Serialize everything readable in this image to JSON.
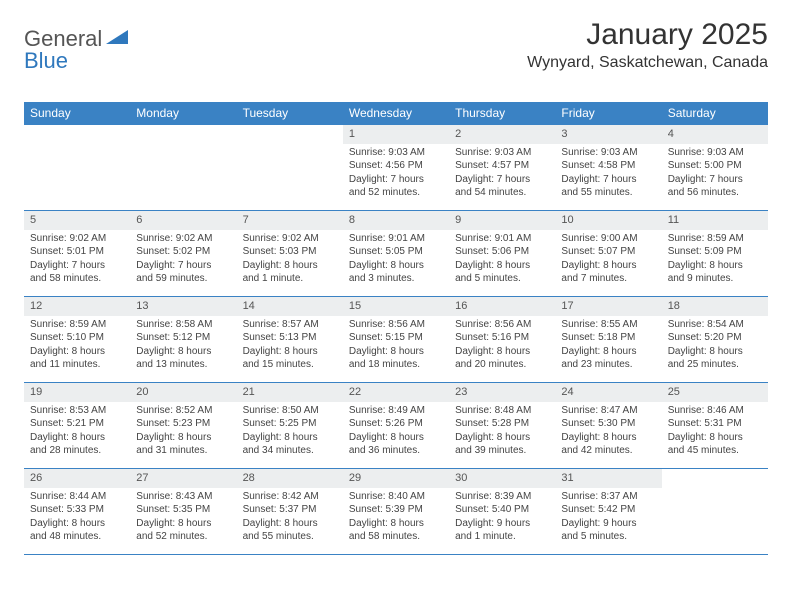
{
  "brand": {
    "part1": "General",
    "part2": "Blue"
  },
  "title": "January 2025",
  "location": "Wynyard, Saskatchewan, Canada",
  "colors": {
    "header_bg": "#3a82c4",
    "header_fg": "#ffffff",
    "daynum_bg": "#eceeef",
    "border": "#3a82c4",
    "brand_accent": "#2f78bd"
  },
  "day_headers": [
    "Sunday",
    "Monday",
    "Tuesday",
    "Wednesday",
    "Thursday",
    "Friday",
    "Saturday"
  ],
  "weeks": [
    [
      {
        "n": "",
        "sunrise": "",
        "sunset": "",
        "daylight1": "",
        "daylight2": "",
        "empty": true
      },
      {
        "n": "",
        "sunrise": "",
        "sunset": "",
        "daylight1": "",
        "daylight2": "",
        "empty": true
      },
      {
        "n": "",
        "sunrise": "",
        "sunset": "",
        "daylight1": "",
        "daylight2": "",
        "empty": true
      },
      {
        "n": "1",
        "sunrise": "Sunrise: 9:03 AM",
        "sunset": "Sunset: 4:56 PM",
        "daylight1": "Daylight: 7 hours",
        "daylight2": "and 52 minutes."
      },
      {
        "n": "2",
        "sunrise": "Sunrise: 9:03 AM",
        "sunset": "Sunset: 4:57 PM",
        "daylight1": "Daylight: 7 hours",
        "daylight2": "and 54 minutes."
      },
      {
        "n": "3",
        "sunrise": "Sunrise: 9:03 AM",
        "sunset": "Sunset: 4:58 PM",
        "daylight1": "Daylight: 7 hours",
        "daylight2": "and 55 minutes."
      },
      {
        "n": "4",
        "sunrise": "Sunrise: 9:03 AM",
        "sunset": "Sunset: 5:00 PM",
        "daylight1": "Daylight: 7 hours",
        "daylight2": "and 56 minutes."
      }
    ],
    [
      {
        "n": "5",
        "sunrise": "Sunrise: 9:02 AM",
        "sunset": "Sunset: 5:01 PM",
        "daylight1": "Daylight: 7 hours",
        "daylight2": "and 58 minutes."
      },
      {
        "n": "6",
        "sunrise": "Sunrise: 9:02 AM",
        "sunset": "Sunset: 5:02 PM",
        "daylight1": "Daylight: 7 hours",
        "daylight2": "and 59 minutes."
      },
      {
        "n": "7",
        "sunrise": "Sunrise: 9:02 AM",
        "sunset": "Sunset: 5:03 PM",
        "daylight1": "Daylight: 8 hours",
        "daylight2": "and 1 minute."
      },
      {
        "n": "8",
        "sunrise": "Sunrise: 9:01 AM",
        "sunset": "Sunset: 5:05 PM",
        "daylight1": "Daylight: 8 hours",
        "daylight2": "and 3 minutes."
      },
      {
        "n": "9",
        "sunrise": "Sunrise: 9:01 AM",
        "sunset": "Sunset: 5:06 PM",
        "daylight1": "Daylight: 8 hours",
        "daylight2": "and 5 minutes."
      },
      {
        "n": "10",
        "sunrise": "Sunrise: 9:00 AM",
        "sunset": "Sunset: 5:07 PM",
        "daylight1": "Daylight: 8 hours",
        "daylight2": "and 7 minutes."
      },
      {
        "n": "11",
        "sunrise": "Sunrise: 8:59 AM",
        "sunset": "Sunset: 5:09 PM",
        "daylight1": "Daylight: 8 hours",
        "daylight2": "and 9 minutes."
      }
    ],
    [
      {
        "n": "12",
        "sunrise": "Sunrise: 8:59 AM",
        "sunset": "Sunset: 5:10 PM",
        "daylight1": "Daylight: 8 hours",
        "daylight2": "and 11 minutes."
      },
      {
        "n": "13",
        "sunrise": "Sunrise: 8:58 AM",
        "sunset": "Sunset: 5:12 PM",
        "daylight1": "Daylight: 8 hours",
        "daylight2": "and 13 minutes."
      },
      {
        "n": "14",
        "sunrise": "Sunrise: 8:57 AM",
        "sunset": "Sunset: 5:13 PM",
        "daylight1": "Daylight: 8 hours",
        "daylight2": "and 15 minutes."
      },
      {
        "n": "15",
        "sunrise": "Sunrise: 8:56 AM",
        "sunset": "Sunset: 5:15 PM",
        "daylight1": "Daylight: 8 hours",
        "daylight2": "and 18 minutes."
      },
      {
        "n": "16",
        "sunrise": "Sunrise: 8:56 AM",
        "sunset": "Sunset: 5:16 PM",
        "daylight1": "Daylight: 8 hours",
        "daylight2": "and 20 minutes."
      },
      {
        "n": "17",
        "sunrise": "Sunrise: 8:55 AM",
        "sunset": "Sunset: 5:18 PM",
        "daylight1": "Daylight: 8 hours",
        "daylight2": "and 23 minutes."
      },
      {
        "n": "18",
        "sunrise": "Sunrise: 8:54 AM",
        "sunset": "Sunset: 5:20 PM",
        "daylight1": "Daylight: 8 hours",
        "daylight2": "and 25 minutes."
      }
    ],
    [
      {
        "n": "19",
        "sunrise": "Sunrise: 8:53 AM",
        "sunset": "Sunset: 5:21 PM",
        "daylight1": "Daylight: 8 hours",
        "daylight2": "and 28 minutes."
      },
      {
        "n": "20",
        "sunrise": "Sunrise: 8:52 AM",
        "sunset": "Sunset: 5:23 PM",
        "daylight1": "Daylight: 8 hours",
        "daylight2": "and 31 minutes."
      },
      {
        "n": "21",
        "sunrise": "Sunrise: 8:50 AM",
        "sunset": "Sunset: 5:25 PM",
        "daylight1": "Daylight: 8 hours",
        "daylight2": "and 34 minutes."
      },
      {
        "n": "22",
        "sunrise": "Sunrise: 8:49 AM",
        "sunset": "Sunset: 5:26 PM",
        "daylight1": "Daylight: 8 hours",
        "daylight2": "and 36 minutes."
      },
      {
        "n": "23",
        "sunrise": "Sunrise: 8:48 AM",
        "sunset": "Sunset: 5:28 PM",
        "daylight1": "Daylight: 8 hours",
        "daylight2": "and 39 minutes."
      },
      {
        "n": "24",
        "sunrise": "Sunrise: 8:47 AM",
        "sunset": "Sunset: 5:30 PM",
        "daylight1": "Daylight: 8 hours",
        "daylight2": "and 42 minutes."
      },
      {
        "n": "25",
        "sunrise": "Sunrise: 8:46 AM",
        "sunset": "Sunset: 5:31 PM",
        "daylight1": "Daylight: 8 hours",
        "daylight2": "and 45 minutes."
      }
    ],
    [
      {
        "n": "26",
        "sunrise": "Sunrise: 8:44 AM",
        "sunset": "Sunset: 5:33 PM",
        "daylight1": "Daylight: 8 hours",
        "daylight2": "and 48 minutes."
      },
      {
        "n": "27",
        "sunrise": "Sunrise: 8:43 AM",
        "sunset": "Sunset: 5:35 PM",
        "daylight1": "Daylight: 8 hours",
        "daylight2": "and 52 minutes."
      },
      {
        "n": "28",
        "sunrise": "Sunrise: 8:42 AM",
        "sunset": "Sunset: 5:37 PM",
        "daylight1": "Daylight: 8 hours",
        "daylight2": "and 55 minutes."
      },
      {
        "n": "29",
        "sunrise": "Sunrise: 8:40 AM",
        "sunset": "Sunset: 5:39 PM",
        "daylight1": "Daylight: 8 hours",
        "daylight2": "and 58 minutes."
      },
      {
        "n": "30",
        "sunrise": "Sunrise: 8:39 AM",
        "sunset": "Sunset: 5:40 PM",
        "daylight1": "Daylight: 9 hours",
        "daylight2": "and 1 minute."
      },
      {
        "n": "31",
        "sunrise": "Sunrise: 8:37 AM",
        "sunset": "Sunset: 5:42 PM",
        "daylight1": "Daylight: 9 hours",
        "daylight2": "and 5 minutes."
      },
      {
        "n": "",
        "sunrise": "",
        "sunset": "",
        "daylight1": "",
        "daylight2": "",
        "empty": true
      }
    ]
  ]
}
